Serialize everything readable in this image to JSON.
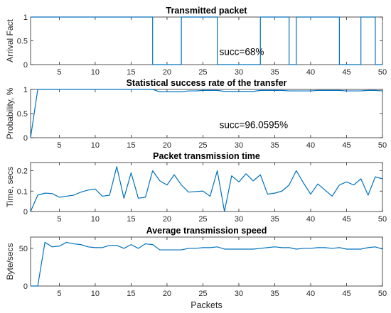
{
  "chart_data": [
    {
      "type": "line",
      "title": "Transmitted packet",
      "ylabel": "Arrival Fact",
      "xlabel": "",
      "xlim": [
        1,
        50
      ],
      "ylim": [
        0,
        1
      ],
      "xticks": [
        5,
        10,
        15,
        20,
        25,
        30,
        35,
        40,
        45,
        50
      ],
      "yticks": [
        0,
        0.5,
        1
      ],
      "ytick_labels": [
        "0",
        "0.5",
        "1"
      ],
      "step": true,
      "annotation": {
        "text": "succ=68%",
        "x": 27.3,
        "y": 0.2
      },
      "series": [
        {
          "color": "#0072BD",
          "x": [
            1,
            2,
            3,
            4,
            5,
            6,
            7,
            8,
            9,
            10,
            11,
            12,
            13,
            14,
            15,
            16,
            17,
            18,
            19,
            20,
            21,
            22,
            23,
            24,
            25,
            26,
            27,
            28,
            29,
            30,
            31,
            32,
            33,
            34,
            35,
            36,
            37,
            38,
            39,
            40,
            41,
            42,
            43,
            44,
            45,
            46,
            47,
            48,
            49,
            50
          ],
          "values": [
            1,
            1,
            1,
            1,
            1,
            1,
            1,
            1,
            1,
            1,
            1,
            1,
            1,
            1,
            1,
            1,
            1,
            0,
            0,
            0,
            0,
            1,
            1,
            1,
            1,
            1,
            0,
            0,
            0,
            0,
            0,
            0,
            1,
            1,
            1,
            1,
            0,
            1,
            1,
            1,
            1,
            1,
            1,
            0,
            0,
            0,
            1,
            1,
            0,
            0
          ]
        }
      ]
    },
    {
      "type": "line",
      "title": "Statistical success rate of the transfer",
      "ylabel": "Probability, %",
      "xlabel": "",
      "xlim": [
        1,
        50
      ],
      "ylim": [
        0,
        1
      ],
      "xticks": [
        5,
        10,
        15,
        20,
        25,
        30,
        35,
        40,
        45,
        50
      ],
      "yticks": [
        0,
        0.5,
        1
      ],
      "ytick_labels": [
        "0",
        "0.5",
        "1"
      ],
      "annotation": {
        "text": "succ=96.0595%",
        "x": 27.3,
        "y": 0.2
      },
      "series": [
        {
          "color": "#0072BD",
          "x": [
            1,
            2,
            3,
            4,
            5,
            6,
            7,
            8,
            9,
            10,
            11,
            12,
            13,
            14,
            15,
            16,
            17,
            18,
            19,
            20,
            21,
            22,
            23,
            24,
            25,
            26,
            27,
            28,
            29,
            30,
            31,
            32,
            33,
            34,
            35,
            36,
            37,
            38,
            39,
            40,
            41,
            42,
            43,
            44,
            45,
            46,
            47,
            48,
            49,
            50
          ],
          "values": [
            0,
            1,
            1,
            1,
            1,
            1,
            1,
            1,
            1,
            1,
            1,
            1,
            1,
            1,
            1,
            1,
            1,
            1,
            0.95,
            0.95,
            0.95,
            0.95,
            0.97,
            0.97,
            0.98,
            0.98,
            0.98,
            0.96,
            0.96,
            0.96,
            0.96,
            0.96,
            0.98,
            0.98,
            0.98,
            0.98,
            0.97,
            0.97,
            0.97,
            0.97,
            0.98,
            0.98,
            0.98,
            0.98,
            0.97,
            0.97,
            0.97,
            0.98,
            0.98,
            0.97
          ]
        }
      ]
    },
    {
      "type": "line",
      "title": "Packet transmission time",
      "ylabel": "Time, secs",
      "xlabel": "",
      "xlim": [
        1,
        50
      ],
      "ylim": [
        0,
        0.24
      ],
      "xticks": [
        5,
        10,
        15,
        20,
        25,
        30,
        35,
        40,
        45,
        50
      ],
      "yticks": [
        0,
        0.1,
        0.2
      ],
      "ytick_labels": [
        "0",
        "0.1",
        "0.2"
      ],
      "series": [
        {
          "color": "#0072BD",
          "x": [
            1,
            2,
            3,
            4,
            5,
            6,
            7,
            8,
            9,
            10,
            11,
            12,
            13,
            14,
            15,
            16,
            17,
            18,
            19,
            20,
            21,
            22,
            23,
            24,
            25,
            26,
            27,
            28,
            29,
            30,
            31,
            32,
            33,
            34,
            35,
            36,
            37,
            38,
            39,
            40,
            41,
            42,
            43,
            44,
            45,
            46,
            47,
            48,
            49,
            50
          ],
          "values": [
            0,
            0.08,
            0.09,
            0.088,
            0.07,
            0.075,
            0.08,
            0.095,
            0.105,
            0.11,
            0.075,
            0.08,
            0.22,
            0.065,
            0.19,
            0.065,
            0.07,
            0.2,
            0.15,
            0.13,
            0.18,
            0.13,
            0.095,
            0.098,
            0.1,
            0.075,
            0.2,
            0,
            0.175,
            0.145,
            0.185,
            0.15,
            0.18,
            0.085,
            0.09,
            0.1,
            0.13,
            0.2,
            0.14,
            0.085,
            0.135,
            0.105,
            0.075,
            0.13,
            0.145,
            0.13,
            0.16,
            0.08,
            0.17,
            0.16
          ]
        }
      ]
    },
    {
      "type": "line",
      "title": "Average transmission speed",
      "ylabel": "Byte/secs",
      "xlabel": "Packets",
      "xlim": [
        1,
        50
      ],
      "ylim": [
        0,
        65
      ],
      "xticks": [
        5,
        10,
        15,
        20,
        25,
        30,
        35,
        40,
        45,
        50
      ],
      "yticks": [
        0,
        50
      ],
      "ytick_labels": [
        "0",
        "50"
      ],
      "series": [
        {
          "color": "#0072BD",
          "x": [
            1,
            2,
            3,
            4,
            5,
            6,
            7,
            8,
            9,
            10,
            11,
            12,
            13,
            14,
            15,
            16,
            17,
            18,
            19,
            20,
            21,
            22,
            23,
            24,
            25,
            26,
            27,
            28,
            29,
            30,
            31,
            32,
            33,
            34,
            35,
            36,
            37,
            38,
            39,
            40,
            41,
            42,
            43,
            44,
            45,
            46,
            47,
            48,
            49,
            50
          ],
          "values": [
            0,
            0,
            58,
            52,
            53,
            58,
            56,
            55,
            52,
            51,
            51,
            54,
            54,
            50,
            55,
            50,
            56,
            55,
            48,
            48,
            48,
            48,
            50,
            50,
            51,
            51,
            52,
            49,
            49,
            49,
            49,
            49,
            50,
            51,
            52,
            51,
            51,
            49,
            50,
            50,
            51,
            51,
            50,
            51,
            49,
            49,
            49,
            51,
            52,
            49
          ]
        }
      ]
    }
  ]
}
